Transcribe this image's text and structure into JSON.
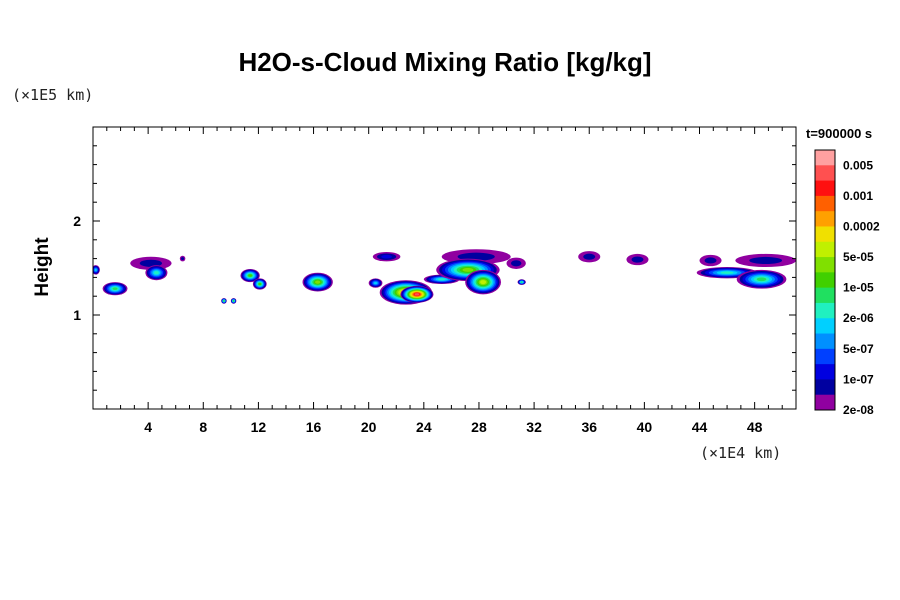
{
  "chart_data": {
    "type": "heatmap",
    "title": "H2O-s-Cloud Mixing Ratio [kg/kg]",
    "ylabel": "Height",
    "x_unit": "(×1E4 km)",
    "y_unit": "(×1E5 km)",
    "time_label": "t=900000 s",
    "xlim": [
      0,
      51
    ],
    "ylim": [
      0,
      3
    ],
    "x_ticks": [
      "4",
      "8",
      "12",
      "16",
      "20",
      "24",
      "28",
      "32",
      "36",
      "40",
      "44",
      "48"
    ],
    "x_tick_values": [
      4,
      8,
      12,
      16,
      20,
      24,
      28,
      32,
      36,
      40,
      44,
      48
    ],
    "y_ticks": [
      "1",
      "2"
    ],
    "y_tick_values": [
      1,
      2
    ],
    "colorbar": {
      "colors": [
        "#ffa0a0",
        "#ff5050",
        "#ff1010",
        "#ff6000",
        "#ffa000",
        "#f0e000",
        "#c0f000",
        "#80e000",
        "#40d000",
        "#20e060",
        "#20f0c0",
        "#00d0ff",
        "#0090ff",
        "#0040ff",
        "#0000e0",
        "#0000a0",
        "#9000a0"
      ],
      "labels": [
        "0.005",
        "0.001",
        "0.0002",
        "5e-05",
        "1e-05",
        "2e-06",
        "5e-07",
        "1e-07",
        "2e-08"
      ]
    },
    "clouds": [
      {
        "x": 0.2,
        "y": 1.48,
        "rx": 0.3,
        "ry": 0.05,
        "peak": 11
      },
      {
        "x": 1.6,
        "y": 1.28,
        "rx": 0.9,
        "ry": 0.07,
        "peak": 9
      },
      {
        "x": 4.2,
        "y": 1.55,
        "rx": 1.5,
        "ry": 0.07,
        "peak": 15
      },
      {
        "x": 4.6,
        "y": 1.45,
        "rx": 0.8,
        "ry": 0.08,
        "peak": 10
      },
      {
        "x": 6.5,
        "y": 1.6,
        "rx": 0.2,
        "ry": 0.03,
        "peak": 15
      },
      {
        "x": 9.5,
        "y": 1.15,
        "rx": 0.2,
        "ry": 0.03,
        "peak": 8
      },
      {
        "x": 10.2,
        "y": 1.15,
        "rx": 0.2,
        "ry": 0.03,
        "peak": 8
      },
      {
        "x": 11.4,
        "y": 1.42,
        "rx": 0.7,
        "ry": 0.07,
        "peak": 8
      },
      {
        "x": 12.1,
        "y": 1.33,
        "rx": 0.5,
        "ry": 0.06,
        "peak": 8
      },
      {
        "x": 16.3,
        "y": 1.35,
        "rx": 1.1,
        "ry": 0.1,
        "peak": 7
      },
      {
        "x": 20.5,
        "y": 1.34,
        "rx": 0.5,
        "ry": 0.05,
        "peak": 11
      },
      {
        "x": 21.3,
        "y": 1.62,
        "rx": 1.0,
        "ry": 0.05,
        "peak": 14
      },
      {
        "x": 22.7,
        "y": 1.24,
        "rx": 1.9,
        "ry": 0.13,
        "peak": 4
      },
      {
        "x": 23.5,
        "y": 1.22,
        "rx": 1.2,
        "ry": 0.09,
        "peak": 1
      },
      {
        "x": 25.3,
        "y": 1.38,
        "rx": 1.3,
        "ry": 0.05,
        "peak": 10
      },
      {
        "x": 27.8,
        "y": 1.62,
        "rx": 2.5,
        "ry": 0.08,
        "peak": 15
      },
      {
        "x": 27.2,
        "y": 1.48,
        "rx": 2.3,
        "ry": 0.12,
        "peak": 7
      },
      {
        "x": 28.3,
        "y": 1.35,
        "rx": 1.3,
        "ry": 0.13,
        "peak": 6
      },
      {
        "x": 30.7,
        "y": 1.55,
        "rx": 0.7,
        "ry": 0.06,
        "peak": 15
      },
      {
        "x": 31.1,
        "y": 1.35,
        "rx": 0.3,
        "ry": 0.03,
        "peak": 9
      },
      {
        "x": 36.0,
        "y": 1.62,
        "rx": 0.8,
        "ry": 0.06,
        "peak": 15
      },
      {
        "x": 39.5,
        "y": 1.59,
        "rx": 0.8,
        "ry": 0.06,
        "peak": 15
      },
      {
        "x": 44.8,
        "y": 1.58,
        "rx": 0.8,
        "ry": 0.06,
        "peak": 15
      },
      {
        "x": 46.0,
        "y": 1.45,
        "rx": 2.2,
        "ry": 0.06,
        "peak": 10
      },
      {
        "x": 48.8,
        "y": 1.58,
        "rx": 2.2,
        "ry": 0.07,
        "peak": 15
      },
      {
        "x": 48.5,
        "y": 1.38,
        "rx": 1.8,
        "ry": 0.1,
        "peak": 9
      }
    ]
  }
}
